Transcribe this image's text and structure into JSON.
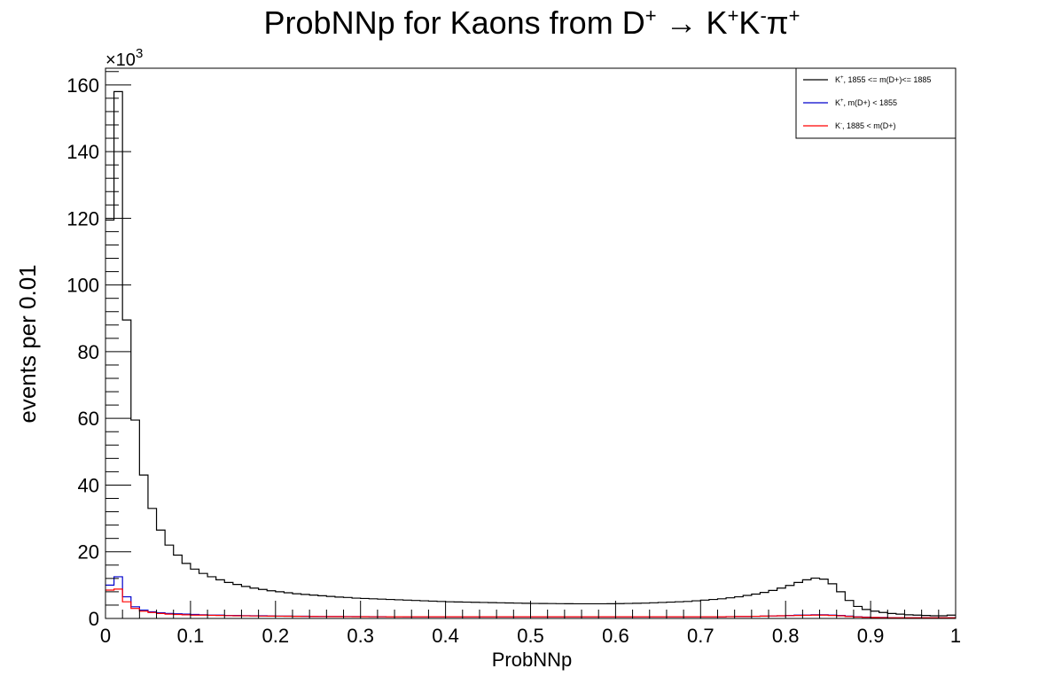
{
  "chart_data": {
    "type": "histogram",
    "title": {
      "parts": [
        {
          "t": "ProbNNp for Kaons from D"
        },
        {
          "t": "+",
          "sup": true
        },
        {
          "t": " → K"
        },
        {
          "t": "+",
          "sup": true
        },
        {
          "t": "K"
        },
        {
          "t": "-",
          "sup": true
        },
        {
          "t": "π"
        },
        {
          "t": "+",
          "sup": true
        }
      ]
    },
    "xlabel": "ProbNNp",
    "ylabel": "events per 0.01",
    "y_multiplier": {
      "base": "×10",
      "exp": "3"
    },
    "xlim": [
      0,
      1
    ],
    "ylim": [
      0,
      165
    ],
    "y_units": "thousands",
    "bin_width": 0.01,
    "x_ticks": [
      "0",
      "0.1",
      "0.2",
      "0.3",
      "0.4",
      "0.5",
      "0.6",
      "0.7",
      "0.8",
      "0.9",
      "1"
    ],
    "y_ticks": [
      "0",
      "20",
      "40",
      "60",
      "80",
      "100",
      "120",
      "140",
      "160"
    ],
    "grid": false,
    "legend_position": "top-right",
    "series": [
      {
        "name": "K⁺, 1855 <= m(D+)<= 1885",
        "legend_label": {
          "pre": "K",
          "sup": "+",
          "post": ", 1855 <= m(D+)<= 1885"
        },
        "color": "#000000",
        "values": [
          119.5,
          158,
          89.5,
          59.5,
          43,
          33,
          26.5,
          22,
          19,
          16.5,
          14.8,
          13.5,
          12.5,
          11.6,
          10.8,
          10.2,
          9.6,
          9.1,
          8.7,
          8.3,
          8,
          7.7,
          7.4,
          7.2,
          7,
          6.8,
          6.6,
          6.4,
          6.3,
          6.1,
          6,
          5.9,
          5.8,
          5.7,
          5.6,
          5.5,
          5.4,
          5.3,
          5.2,
          5.1,
          5,
          4.95,
          4.9,
          4.85,
          4.8,
          4.75,
          4.7,
          4.65,
          4.6,
          4.55,
          4.5,
          4.48,
          4.46,
          4.44,
          4.42,
          4.4,
          4.4,
          4.4,
          4.4,
          4.42,
          4.45,
          4.5,
          4.55,
          4.6,
          4.7,
          4.8,
          4.9,
          5,
          5.1,
          5.3,
          5.5,
          5.7,
          5.9,
          6.2,
          6.5,
          6.9,
          7.3,
          7.8,
          8.4,
          9.1,
          9.9,
          10.8,
          11.6,
          12.1,
          11.8,
          10.4,
          8,
          5.4,
          3.6,
          2.7,
          2.2,
          1.8,
          1.5,
          1.3,
          1.1,
          1,
          0.9,
          0.8,
          0.8,
          1
        ]
      },
      {
        "name": "K⁺, m(D+) < 1855",
        "legend_label": {
          "pre": "K",
          "sup": "+",
          "post": ", m(D+) < 1855"
        },
        "color": "#0000cc",
        "values": [
          10,
          12.5,
          6.5,
          3.5,
          2.5,
          2,
          1.7,
          1.5,
          1.4,
          1.3,
          1.2,
          1.1,
          1,
          1,
          0.9,
          0.9,
          0.85,
          0.8,
          0.8,
          0.75,
          0.7,
          0.7,
          0.68,
          0.66,
          0.64,
          0.62,
          0.6,
          0.6,
          0.58,
          0.56,
          0.55,
          0.54,
          0.53,
          0.52,
          0.51,
          0.5,
          0.5,
          0.5,
          0.5,
          0.5,
          0.5,
          0.5,
          0.5,
          0.5,
          0.5,
          0.5,
          0.5,
          0.5,
          0.5,
          0.5,
          0.5,
          0.5,
          0.5,
          0.5,
          0.5,
          0.5,
          0.5,
          0.5,
          0.5,
          0.5,
          0.5,
          0.5,
          0.5,
          0.5,
          0.5,
          0.5,
          0.5,
          0.5,
          0.5,
          0.5,
          0.5,
          0.5,
          0.5,
          0.55,
          0.6,
          0.6,
          0.65,
          0.7,
          0.75,
          0.8,
          0.9,
          1,
          1,
          1.1,
          1.1,
          1,
          0.9,
          0.7,
          0.5,
          0.4,
          0.3,
          0.3,
          0.25,
          0.2,
          0.2,
          0.2,
          0.2,
          0.2,
          0.2,
          0.2
        ]
      },
      {
        "name": "K⁻, 1885 < m(D+)",
        "legend_label": {
          "pre": "K",
          "sup": "-",
          "post": ",  1885 < m(D+)"
        },
        "color": "#ff0000",
        "values": [
          8.5,
          8.8,
          5,
          3,
          2.2,
          1.8,
          1.5,
          1.3,
          1.2,
          1.1,
          1,
          1,
          0.95,
          0.9,
          0.85,
          0.8,
          0.78,
          0.75,
          0.72,
          0.7,
          0.68,
          0.66,
          0.64,
          0.62,
          0.6,
          0.58,
          0.57,
          0.56,
          0.55,
          0.54,
          0.53,
          0.52,
          0.51,
          0.5,
          0.5,
          0.5,
          0.5,
          0.5,
          0.5,
          0.5,
          0.5,
          0.5,
          0.5,
          0.5,
          0.5,
          0.5,
          0.5,
          0.5,
          0.5,
          0.5,
          0.5,
          0.5,
          0.5,
          0.5,
          0.5,
          0.5,
          0.5,
          0.5,
          0.5,
          0.5,
          0.5,
          0.5,
          0.5,
          0.5,
          0.5,
          0.5,
          0.5,
          0.5,
          0.5,
          0.5,
          0.5,
          0.5,
          0.5,
          0.55,
          0.6,
          0.6,
          0.65,
          0.7,
          0.75,
          0.8,
          0.85,
          0.9,
          0.95,
          1,
          1,
          0.9,
          0.8,
          0.6,
          0.45,
          0.35,
          0.3,
          0.25,
          0.2,
          0.2,
          0.2,
          0.2,
          0.2,
          0.2,
          0.2,
          0.2
        ]
      }
    ]
  }
}
